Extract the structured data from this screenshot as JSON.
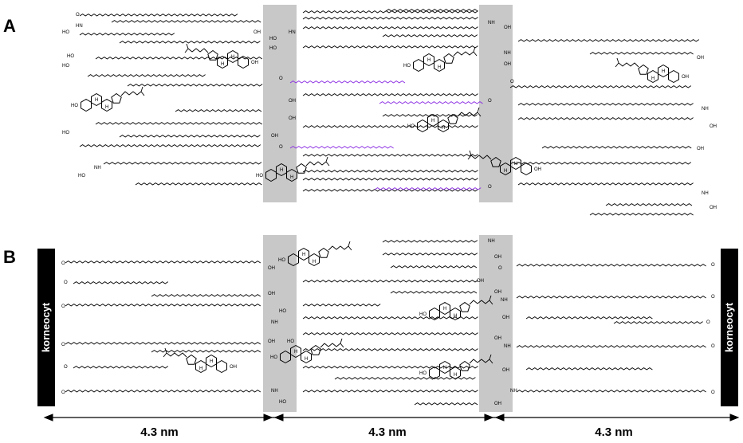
{
  "panels": {
    "a": {
      "letter": "A"
    },
    "b": {
      "letter": "B"
    }
  },
  "labels": {
    "corneocyte_left": "korneocyt",
    "corneocyte_right": "korneocyt",
    "dim_1": "4.3 nm",
    "dim_2": "4.3 nm",
    "dim_3": "4.3 nm"
  },
  "atoms": {
    "OH": "OH",
    "HO": "HO",
    "O": "O",
    "N": "N",
    "H": "H",
    "HN": "HN",
    "NH": "NH"
  },
  "colors": {
    "shaded_band": "#c8c8c8",
    "chain": "#000000",
    "unsaturated_chain": "#8a2be2",
    "corneocyte": "#000000"
  }
}
